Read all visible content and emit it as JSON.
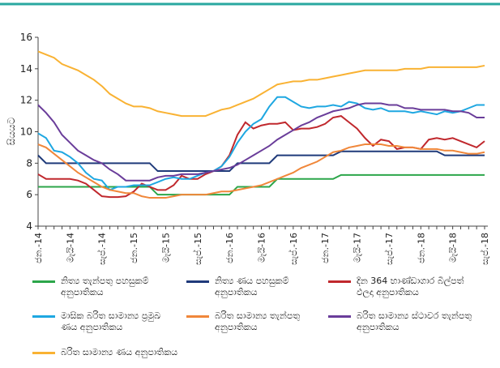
{
  "chart_data": {
    "type": "line",
    "ylabel": "සියයට",
    "categories": [
      "ජන.-14",
      null,
      null,
      null,
      "මැයි-14",
      null,
      null,
      null,
      "සැප්.-14",
      null,
      null,
      null,
      "ජන.-15",
      null,
      null,
      null,
      "මැයි-15",
      null,
      null,
      null,
      "සැප්.-15",
      null,
      null,
      null,
      "ජන.-16",
      null,
      null,
      null,
      "මැයි-16",
      null,
      null,
      null,
      "සැප්.-16",
      null,
      null,
      null,
      "ජන.-17",
      null,
      null,
      null,
      "මැයි-17",
      null,
      null,
      null,
      "සැප්.-17",
      null,
      null,
      null,
      "ජන.-18",
      null,
      null,
      null,
      "මැයි-18",
      null,
      null,
      null,
      "සැප්.-18"
    ],
    "ylim": [
      4,
      16
    ],
    "yticks": [
      4,
      6,
      8,
      10,
      12,
      14,
      16
    ],
    "series": [
      {
        "name": "නිත්‍ය තැන්පතු පහසුකම් අනුපාතිකය",
        "color": "#2ca64a",
        "values": [
          6.5,
          6.5,
          6.5,
          6.5,
          6.5,
          6.5,
          6.5,
          6.5,
          6.5,
          6.5,
          6.5,
          6.5,
          6.5,
          6.5,
          6.5,
          6,
          6,
          6,
          6,
          6,
          6,
          6,
          6,
          6,
          6,
          6.5,
          6.5,
          6.5,
          6.5,
          6.5,
          7,
          7,
          7,
          7,
          7,
          7,
          7,
          7,
          7.25,
          7.25,
          7.25,
          7.25,
          7.25,
          7.25,
          7.25,
          7.25,
          7.25,
          7.25,
          7.25,
          7.25,
          7.25,
          7.25,
          7.25,
          7.25,
          7.25,
          7.25,
          7.25
        ]
      },
      {
        "name": "නිත්‍ය ණය පහසුකම් අනුපාතිකය",
        "color": "#1f3a7a",
        "values": [
          8.5,
          8,
          8,
          8,
          8,
          8,
          8,
          8,
          8,
          8,
          8,
          8,
          8,
          8,
          8,
          7.5,
          7.5,
          7.5,
          7.5,
          7.5,
          7.5,
          7.5,
          7.5,
          7.5,
          7.5,
          8,
          8,
          8,
          8,
          8,
          8.5,
          8.5,
          8.5,
          8.5,
          8.5,
          8.5,
          8.5,
          8.5,
          8.75,
          8.75,
          8.75,
          8.75,
          8.75,
          8.75,
          8.75,
          8.75,
          8.75,
          8.75,
          8.75,
          8.75,
          8.75,
          8.5,
          8.5,
          8.5,
          8.5,
          8.5,
          8.5
        ]
      },
      {
        "name": "දින 364 භාණ්ඩාගාර බිල්පත් ඵලදා අනුපාතිකය",
        "color": "#c0282d",
        "values": [
          7.3,
          7,
          7,
          7,
          7,
          6.9,
          6.7,
          6.3,
          5.9,
          5.85,
          5.85,
          5.9,
          6.2,
          6.7,
          6.5,
          6.3,
          6.3,
          6.6,
          7.2,
          7,
          7,
          7.3,
          7.5,
          7.8,
          8.5,
          9.8,
          10.6,
          10.2,
          10.4,
          10.5,
          10.5,
          10.6,
          10.1,
          10.2,
          10.2,
          10.3,
          10.5,
          10.9,
          11,
          10.6,
          10.2,
          9.6,
          9.1,
          9.5,
          9.4,
          8.9,
          9,
          9,
          8.9,
          9.5,
          9.6,
          9.5,
          9.6,
          9.4,
          9.2,
          9,
          9.4
        ]
      },
      {
        "name": "මාසික බරිත සාමාන්‍ය ප්‍රමුඛ ණය අනුපාතිකය",
        "color": "#1ea7e1",
        "values": [
          9.9,
          9.6,
          8.8,
          8.7,
          8.4,
          8,
          7.4,
          7,
          6.9,
          6.3,
          6.5,
          6.5,
          6.6,
          6.6,
          6.6,
          6.8,
          7,
          7.1,
          7,
          7,
          7.2,
          7.4,
          7.5,
          7.8,
          8.4,
          9.3,
          10,
          10.5,
          10.8,
          11.6,
          12.2,
          12.2,
          11.9,
          11.6,
          11.5,
          11.6,
          11.6,
          11.7,
          11.6,
          11.9,
          11.8,
          11.5,
          11.4,
          11.5,
          11.3,
          11.3,
          11.3,
          11.2,
          11.3,
          11.2,
          11.1,
          11.3,
          11.2,
          11.3,
          11.5,
          11.7,
          11.7
        ]
      },
      {
        "name": "බරිත සාමාන්‍ය තැන්පතු අනුපාතිකය",
        "color": "#f0873a",
        "values": [
          9.2,
          9,
          8.6,
          8.2,
          7.8,
          7.4,
          7.1,
          6.8,
          6.5,
          6.3,
          6.2,
          6.1,
          6.1,
          5.9,
          5.8,
          5.8,
          5.8,
          5.9,
          6,
          6,
          6,
          6,
          6.1,
          6.2,
          6.2,
          6.3,
          6.4,
          6.5,
          6.6,
          6.8,
          7,
          7.2,
          7.4,
          7.7,
          7.9,
          8.1,
          8.4,
          8.7,
          8.8,
          9,
          9.1,
          9.2,
          9.2,
          9.2,
          9.1,
          9.1,
          9,
          9,
          8.9,
          8.9,
          8.9,
          8.8,
          8.8,
          8.7,
          8.6,
          8.6,
          8.7
        ]
      },
      {
        "name": "බරිත සාමාන්‍ය ස්ථාවර තැන්පතු අනුපාතිකය",
        "color": "#6a3d9a",
        "values": [
          11.7,
          11.2,
          10.6,
          9.8,
          9.3,
          8.8,
          8.5,
          8.2,
          8,
          7.6,
          7.3,
          6.9,
          6.9,
          6.9,
          6.9,
          7.1,
          7.2,
          7.2,
          7.3,
          7.3,
          7.3,
          7.4,
          7.5,
          7.6,
          7.7,
          7.9,
          8.2,
          8.5,
          8.8,
          9.1,
          9.5,
          9.8,
          10.1,
          10.4,
          10.6,
          10.9,
          11.1,
          11.3,
          11.4,
          11.5,
          11.7,
          11.8,
          11.8,
          11.8,
          11.7,
          11.7,
          11.5,
          11.5,
          11.4,
          11.4,
          11.4,
          11.4,
          11.3,
          11.3,
          11.2,
          10.9,
          10.9
        ]
      },
      {
        "name": "බරිත සාමාන්‍ය ණය අනුපාතිකය",
        "color": "#f9b233",
        "values": [
          15.1,
          14.9,
          14.7,
          14.3,
          14.1,
          13.9,
          13.6,
          13.3,
          12.9,
          12.4,
          12.1,
          11.8,
          11.6,
          11.6,
          11.5,
          11.3,
          11.2,
          11.1,
          11,
          11,
          11,
          11,
          11.2,
          11.4,
          11.5,
          11.7,
          11.9,
          12.1,
          12.4,
          12.7,
          13,
          13.1,
          13.2,
          13.2,
          13.3,
          13.3,
          13.4,
          13.5,
          13.6,
          13.7,
          13.8,
          13.9,
          13.9,
          13.9,
          13.9,
          13.9,
          14,
          14,
          14,
          14.1,
          14.1,
          14.1,
          14.1,
          14.1,
          14.1,
          14.1,
          14.2
        ]
      }
    ]
  }
}
